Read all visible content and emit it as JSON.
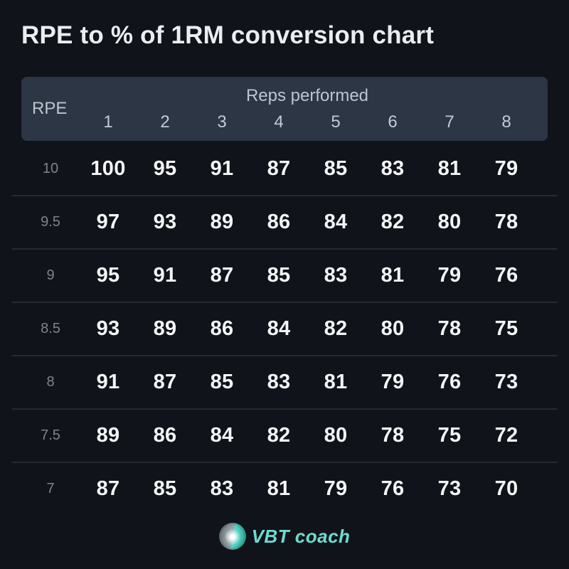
{
  "title": "RPE to % of 1RM conversion chart",
  "colors": {
    "background": "#101319",
    "header_bg": "#2c3645",
    "header_text": "#bcc5cf",
    "rep_number_text": "#c3cbd4",
    "value_text": "#f3f5f7",
    "rpe_label_text": "#7d848f",
    "divider": "#242933",
    "title_text": "#e9eff1",
    "brand_teal": "#6cdccf"
  },
  "table": {
    "rpe_header": "RPE",
    "reps_header": "Reps performed",
    "rep_columns": [
      "1",
      "2",
      "3",
      "4",
      "5",
      "6",
      "7",
      "8"
    ],
    "rows": [
      {
        "rpe": "10",
        "values": [
          "100",
          "95",
          "91",
          "87",
          "85",
          "83",
          "81",
          "79"
        ]
      },
      {
        "rpe": "9.5",
        "values": [
          "97",
          "93",
          "89",
          "86",
          "84",
          "82",
          "80",
          "78"
        ]
      },
      {
        "rpe": "9",
        "values": [
          "95",
          "91",
          "87",
          "85",
          "83",
          "81",
          "79",
          "76"
        ]
      },
      {
        "rpe": "8.5",
        "values": [
          "93",
          "89",
          "86",
          "84",
          "82",
          "80",
          "78",
          "75"
        ]
      },
      {
        "rpe": "8",
        "values": [
          "91",
          "87",
          "85",
          "83",
          "81",
          "79",
          "76",
          "73"
        ]
      },
      {
        "rpe": "7.5",
        "values": [
          "89",
          "86",
          "84",
          "82",
          "80",
          "78",
          "75",
          "72"
        ]
      },
      {
        "rpe": "7",
        "values": [
          "87",
          "85",
          "83",
          "81",
          "79",
          "76",
          "73",
          "70"
        ]
      }
    ]
  },
  "footer": {
    "brand": "VBT coach",
    "logo_icon": "velocity-sphere-icon"
  },
  "chart_data": {
    "type": "table",
    "title": "RPE to % of 1RM conversion chart",
    "row_header_label": "RPE",
    "column_group_label": "Reps performed",
    "columns": [
      1,
      2,
      3,
      4,
      5,
      6,
      7,
      8
    ],
    "rows": [
      {
        "rpe": 10,
        "percent_1rm": [
          100,
          95,
          91,
          87,
          85,
          83,
          81,
          79
        ]
      },
      {
        "rpe": 9.5,
        "percent_1rm": [
          97,
          93,
          89,
          86,
          84,
          82,
          80,
          78
        ]
      },
      {
        "rpe": 9,
        "percent_1rm": [
          95,
          91,
          87,
          85,
          83,
          81,
          79,
          76
        ]
      },
      {
        "rpe": 8.5,
        "percent_1rm": [
          93,
          89,
          86,
          84,
          82,
          80,
          78,
          75
        ]
      },
      {
        "rpe": 8,
        "percent_1rm": [
          91,
          87,
          85,
          83,
          81,
          79,
          76,
          73
        ]
      },
      {
        "rpe": 7.5,
        "percent_1rm": [
          89,
          86,
          84,
          82,
          80,
          78,
          75,
          72
        ]
      },
      {
        "rpe": 7,
        "percent_1rm": [
          87,
          85,
          83,
          81,
          79,
          76,
          73,
          70
        ]
      }
    ]
  }
}
